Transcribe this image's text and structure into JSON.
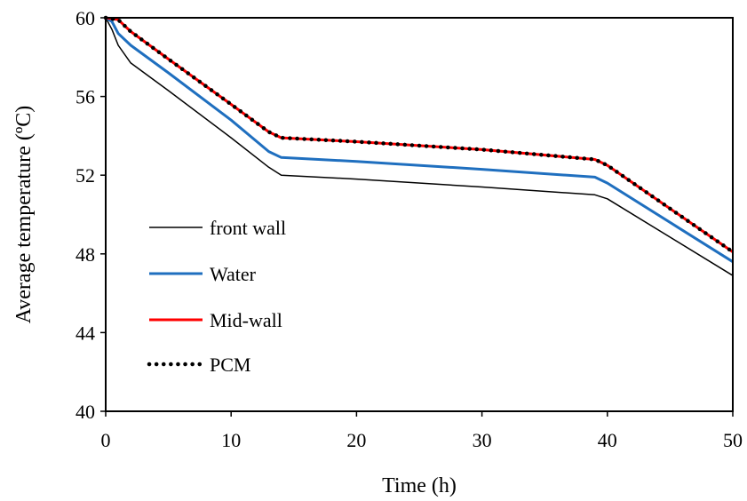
{
  "chart_data": {
    "type": "line",
    "title": "",
    "xlabel": "Time (h)",
    "ylabel": "Average temperature (ºC)",
    "xlim": [
      0,
      50
    ],
    "ylim": [
      40,
      60
    ],
    "xticks": [
      "0",
      "10",
      "20",
      "30",
      "40",
      "50"
    ],
    "yticks": [
      "40",
      "44",
      "48",
      "52",
      "56",
      "60"
    ],
    "grid": false,
    "legend_position": "left",
    "series": [
      {
        "name": "front wall",
        "color": "#000000",
        "style": "solid-thin",
        "x": [
          0,
          0.5,
          1,
          2,
          5,
          10,
          13,
          14,
          20,
          30,
          39,
          40,
          50
        ],
        "y": [
          60,
          59.4,
          58.6,
          57.7,
          56.3,
          53.9,
          52.4,
          52.0,
          51.8,
          51.4,
          51.0,
          50.8,
          46.9
        ]
      },
      {
        "name": "Water",
        "color": "#1f6fbf",
        "style": "solid",
        "x": [
          0,
          0.5,
          1,
          2,
          5,
          10,
          13,
          14,
          20,
          30,
          39,
          40,
          50
        ],
        "y": [
          60,
          59.8,
          59.2,
          58.6,
          57.2,
          54.8,
          53.2,
          52.9,
          52.7,
          52.3,
          51.9,
          51.6,
          47.6
        ]
      },
      {
        "name": "Mid-wall",
        "color": "#ff0000",
        "style": "solid",
        "x": [
          0,
          1,
          2,
          5,
          10,
          13,
          14,
          20,
          30,
          39,
          40,
          50
        ],
        "y": [
          60,
          59.9,
          59.3,
          57.9,
          55.6,
          54.2,
          53.9,
          53.7,
          53.3,
          52.8,
          52.5,
          48.1
        ]
      },
      {
        "name": "PCM",
        "color": "#000000",
        "style": "dotted",
        "x": [
          0,
          1,
          2,
          5,
          10,
          13,
          14,
          20,
          30,
          39,
          40,
          50
        ],
        "y": [
          60,
          59.9,
          59.3,
          57.9,
          55.6,
          54.2,
          53.9,
          53.7,
          53.3,
          52.8,
          52.5,
          48.1
        ]
      }
    ]
  }
}
